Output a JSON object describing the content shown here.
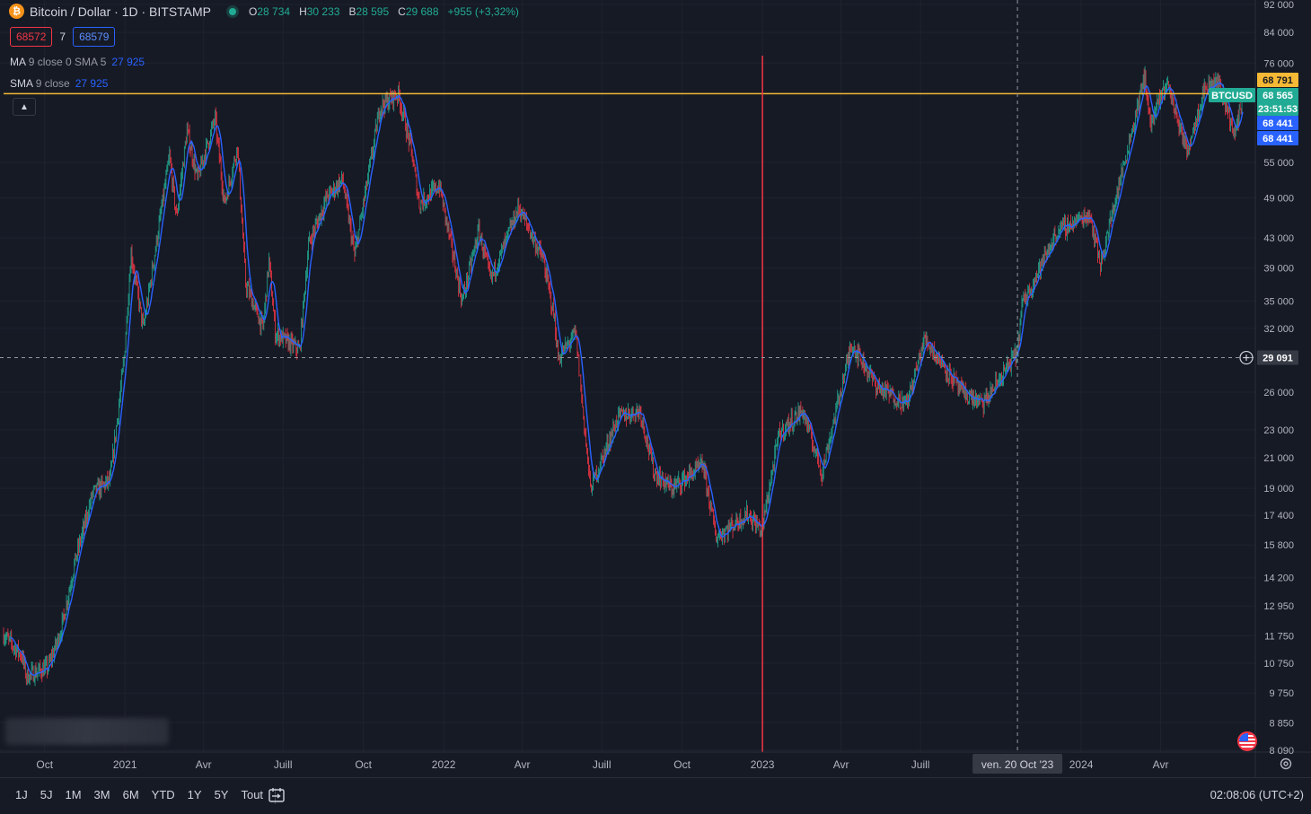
{
  "legend": {
    "symbol_title": "Bitcoin / Dollar · 1D · BITSTAMP",
    "open_label": "O",
    "open": "28 734",
    "high_label": "H",
    "high": "30 233",
    "low_label": "B",
    "low": "28 595",
    "close_label": "C",
    "close": "29 688",
    "change": "+955 (+3,32%)",
    "bid": "68572",
    "spread": "7",
    "ask": "68579",
    "colors": {
      "up": "#22ab94",
      "down": "#f23645",
      "ma": "#2962ff",
      "level": "#f5b935",
      "marker": "#f23645"
    }
  },
  "indicators": [
    {
      "name": "MA",
      "params": "9 close 0 SMA 5",
      "value": "27 925"
    },
    {
      "name": "SMA",
      "params": "9 close",
      "value": "27 925"
    }
  ],
  "price_tags": [
    {
      "text": "68 791",
      "value": 68791,
      "type": "level"
    },
    {
      "text": "BTCUSD",
      "value": 68565,
      "type": "symbol"
    },
    {
      "text": "68 565",
      "value": 68565,
      "type": "last"
    },
    {
      "text": "23:51:53",
      "value": 68565,
      "type": "countdown"
    },
    {
      "text": "68 441",
      "value": 68441,
      "type": "ma"
    },
    {
      "text": "68 441",
      "value": 68441,
      "type": "sma"
    },
    {
      "text": "29 091",
      "value": 29091,
      "type": "crosshair"
    }
  ],
  "crosshair_date": "ven. 20 Oct '23",
  "bottom_bar": {
    "ranges": [
      "1J",
      "5J",
      "1M",
      "3M",
      "6M",
      "YTD",
      "1Y",
      "5Y",
      "Tout"
    ],
    "clock": "02:08:06 (UTC+2)"
  },
  "chart_data": {
    "type": "candlestick",
    "title": "Bitcoin / Dollar · 1D · BITSTAMP",
    "y_scale": "log",
    "ylim": [
      8090,
      92000
    ],
    "y_ticks": [
      {
        "label": "92 000",
        "value": 92000
      },
      {
        "label": "84 000",
        "value": 84000
      },
      {
        "label": "76 000",
        "value": 76000
      },
      {
        "label": "55 000",
        "value": 55000
      },
      {
        "label": "49 000",
        "value": 49000
      },
      {
        "label": "43 000",
        "value": 43000
      },
      {
        "label": "39 000",
        "value": 39000
      },
      {
        "label": "35 000",
        "value": 35000
      },
      {
        "label": "32 000",
        "value": 32000
      },
      {
        "label": "26 000",
        "value": 26000
      },
      {
        "label": "23 000",
        "value": 23000
      },
      {
        "label": "21 000",
        "value": 21000
      },
      {
        "label": "19 000",
        "value": 19000
      },
      {
        "label": "17 400",
        "value": 17400
      },
      {
        "label": "15 800",
        "value": 15800
      },
      {
        "label": "14 200",
        "value": 14200
      },
      {
        "label": "12 950",
        "value": 12950
      },
      {
        "label": "11 750",
        "value": 11750
      },
      {
        "label": "10 750",
        "value": 10750
      },
      {
        "label": "9 750",
        "value": 9750
      },
      {
        "label": "8 850",
        "value": 8850
      },
      {
        "label": "8 090",
        "value": 8090
      }
    ],
    "xlim": [
      "2020-08-15",
      "2024-07-04"
    ],
    "x_ticks": [
      {
        "label": "Oct",
        "date": "2020-10-01"
      },
      {
        "label": "2021",
        "date": "2021-01-01"
      },
      {
        "label": "Avr",
        "date": "2021-04-01"
      },
      {
        "label": "Juill",
        "date": "2021-07-01"
      },
      {
        "label": "Oct",
        "date": "2021-10-01"
      },
      {
        "label": "2022",
        "date": "2022-01-01"
      },
      {
        "label": "Avr",
        "date": "2022-04-01"
      },
      {
        "label": "Juill",
        "date": "2022-07-01"
      },
      {
        "label": "Oct",
        "date": "2022-10-01"
      },
      {
        "label": "2023",
        "date": "2023-01-01"
      },
      {
        "label": "Avr",
        "date": "2023-04-01"
      },
      {
        "label": "Juill",
        "date": "2023-07-01"
      },
      {
        "label": "2024",
        "date": "2024-01-01"
      },
      {
        "label": "Avr",
        "date": "2024-04-01"
      }
    ],
    "horizontal_level": 68791,
    "crosshair": {
      "date": "2023-10-20",
      "price": 29091
    },
    "vertical_marker": "2023-01-01",
    "close_path": [
      [
        "2020-08-15",
        11800
      ],
      [
        "2020-09-05",
        11000
      ],
      [
        "2020-09-10",
        10300
      ],
      [
        "2020-10-05",
        10600
      ],
      [
        "2020-10-20",
        12000
      ],
      [
        "2020-11-05",
        15000
      ],
      [
        "2020-11-25",
        18700
      ],
      [
        "2020-12-15",
        19500
      ],
      [
        "2020-12-31",
        29000
      ],
      [
        "2021-01-08",
        41000
      ],
      [
        "2021-01-22",
        32000
      ],
      [
        "2021-02-08",
        44000
      ],
      [
        "2021-02-21",
        56000
      ],
      [
        "2021-03-01",
        46000
      ],
      [
        "2021-03-13",
        61000
      ],
      [
        "2021-03-25",
        52000
      ],
      [
        "2021-04-14",
        63500
      ],
      [
        "2021-04-25",
        48000
      ],
      [
        "2021-05-10",
        58000
      ],
      [
        "2021-05-19",
        37000
      ],
      [
        "2021-06-08",
        32000
      ],
      [
        "2021-06-15",
        40000
      ],
      [
        "2021-06-22",
        31500
      ],
      [
        "2021-07-20",
        29800
      ],
      [
        "2021-07-30",
        42000
      ],
      [
        "2021-08-20",
        49000
      ],
      [
        "2021-09-07",
        52000
      ],
      [
        "2021-09-21",
        40500
      ],
      [
        "2021-10-20",
        66000
      ],
      [
        "2021-11-10",
        68800
      ],
      [
        "2021-11-25",
        57000
      ],
      [
        "2021-12-04",
        48000
      ],
      [
        "2021-12-27",
        51000
      ],
      [
        "2022-01-22",
        35000
      ],
      [
        "2022-02-10",
        44000
      ],
      [
        "2022-02-24",
        37500
      ],
      [
        "2022-03-28",
        47500
      ],
      [
        "2022-04-25",
        40000
      ],
      [
        "2022-05-08",
        33000
      ],
      [
        "2022-05-12",
        29000
      ],
      [
        "2022-06-01",
        31500
      ],
      [
        "2022-06-13",
        22000
      ],
      [
        "2022-06-18",
        19000
      ],
      [
        "2022-07-20",
        24000
      ],
      [
        "2022-08-14",
        24500
      ],
      [
        "2022-08-30",
        20000
      ],
      [
        "2022-09-19",
        19000
      ],
      [
        "2022-10-25",
        20500
      ],
      [
        "2022-11-09",
        16200
      ],
      [
        "2022-12-15",
        17500
      ],
      [
        "2022-12-31",
        16550
      ],
      [
        "2023-01-20",
        22700
      ],
      [
        "2023-02-16",
        24500
      ],
      [
        "2023-03-10",
        20000
      ],
      [
        "2023-04-13",
        30500
      ],
      [
        "2023-05-12",
        26500
      ],
      [
        "2023-06-15",
        25000
      ],
      [
        "2023-07-06",
        31000
      ],
      [
        "2023-08-17",
        26000
      ],
      [
        "2023-09-11",
        25000
      ],
      [
        "2023-10-20",
        29700
      ],
      [
        "2023-10-25",
        34500
      ],
      [
        "2023-12-05",
        44000
      ],
      [
        "2024-01-11",
        46500
      ],
      [
        "2024-01-23",
        39500
      ],
      [
        "2024-02-28",
        61000
      ],
      [
        "2024-03-14",
        73000
      ],
      [
        "2024-03-20",
        62000
      ],
      [
        "2024-04-08",
        71500
      ],
      [
        "2024-05-01",
        57000
      ],
      [
        "2024-05-21",
        70000
      ],
      [
        "2024-06-07",
        71500
      ],
      [
        "2024-06-25",
        60000
      ],
      [
        "2024-07-04",
        68565
      ]
    ]
  }
}
